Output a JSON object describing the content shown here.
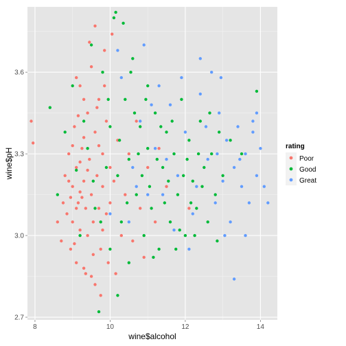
{
  "chart_data": {
    "type": "scatter",
    "title": "",
    "xlabel": "wine$alcohol",
    "ylabel": "wine$pH",
    "xlim": [
      7.8,
      14.45
    ],
    "ylim": [
      2.69,
      3.84
    ],
    "x_ticks": [
      8,
      10,
      12,
      14
    ],
    "y_ticks": [
      2.7,
      3.0,
      3.3,
      3.6
    ],
    "x_tick_labels": [
      "8",
      "10",
      "12",
      "14"
    ],
    "y_tick_labels": [
      "2.7",
      "3.0",
      "3.3",
      "3.6"
    ],
    "grid": true,
    "legend": {
      "title": "rating",
      "position": "right"
    },
    "series": [
      {
        "name": "Poor",
        "color": "#F8766D",
        "points": [
          [
            7.9,
            3.42
          ],
          [
            7.95,
            3.34
          ],
          [
            8.6,
            3.05
          ],
          [
            8.7,
            2.98
          ],
          [
            8.75,
            3.12
          ],
          [
            8.8,
            3.22
          ],
          [
            8.85,
            3.08
          ],
          [
            8.9,
            3.3
          ],
          [
            8.95,
            2.95
          ],
          [
            9.0,
            3.18
          ],
          [
            9.0,
            3.05
          ],
          [
            9.05,
            3.4
          ],
          [
            9.1,
            3.25
          ],
          [
            9.1,
            2.9
          ],
          [
            9.15,
            3.12
          ],
          [
            9.2,
            3.55
          ],
          [
            9.2,
            3.02
          ],
          [
            9.25,
            3.32
          ],
          [
            9.3,
            3.2
          ],
          [
            9.3,
            2.88
          ],
          [
            9.35,
            3.1
          ],
          [
            9.4,
            3.45
          ],
          [
            9.4,
            3.0
          ],
          [
            9.45,
            3.28
          ],
          [
            9.5,
            3.15
          ],
          [
            9.5,
            3.62
          ],
          [
            9.55,
            3.05
          ],
          [
            9.6,
            3.38
          ],
          [
            9.6,
            2.82
          ],
          [
            9.65,
            3.22
          ],
          [
            9.7,
            3.1
          ],
          [
            9.7,
            3.5
          ],
          [
            9.75,
            2.95
          ],
          [
            9.8,
            3.3
          ],
          [
            9.8,
            3.18
          ],
          [
            9.85,
            3.68
          ],
          [
            9.9,
            3.08
          ],
          [
            9.9,
            3.42
          ],
          [
            9.95,
            2.9
          ],
          [
            10.0,
            3.25
          ],
          [
            10.0,
            3.12
          ],
          [
            9.2,
            3.27
          ],
          [
            9.3,
            3.36
          ],
          [
            9.05,
            2.97
          ],
          [
            8.95,
            3.14
          ],
          [
            9.15,
            3.44
          ],
          [
            9.6,
            3.77
          ],
          [
            9.45,
            3.71
          ],
          [
            9.35,
            2.86
          ],
          [
            9.75,
            2.78
          ],
          [
            10.1,
            3.2
          ],
          [
            10.2,
            3.35
          ],
          [
            10.3,
            3.0
          ],
          [
            10.4,
            3.15
          ],
          [
            10.5,
            3.3
          ],
          [
            10.6,
            2.98
          ],
          [
            10.8,
            3.1
          ],
          [
            11.0,
            3.25
          ],
          [
            11.2,
            3.05
          ],
          [
            11.5,
            3.18
          ],
          [
            9.8,
            3.02
          ],
          [
            9.1,
            3.58
          ],
          [
            9.25,
            3.14
          ],
          [
            9.55,
            2.93
          ],
          [
            9.65,
            3.47
          ],
          [
            9.4,
            3.24
          ],
          [
            9.0,
            3.33
          ],
          [
            10.05,
            3.74
          ],
          [
            9.85,
            3.55
          ],
          [
            10.15,
            2.86
          ],
          [
            10.7,
            3.42
          ],
          [
            10.9,
            2.92
          ],
          [
            11.3,
            3.32
          ],
          [
            12.1,
            3.1
          ],
          [
            9.5,
            2.85
          ],
          [
            9.7,
            3.33
          ],
          [
            9.3,
            3.5
          ],
          [
            8.9,
            3.2
          ],
          [
            9.1,
            3.1
          ],
          [
            9.2,
            3.16
          ]
        ]
      },
      {
        "name": "Good",
        "color": "#00BA38",
        "points": [
          [
            8.4,
            3.47
          ],
          [
            8.6,
            3.15
          ],
          [
            8.8,
            3.38
          ],
          [
            9.0,
            3.55
          ],
          [
            9.2,
            3.0
          ],
          [
            9.4,
            3.32
          ],
          [
            9.6,
            3.1
          ],
          [
            9.8,
            3.6
          ],
          [
            10.0,
            2.95
          ],
          [
            10.0,
            3.4
          ],
          [
            10.1,
            3.8
          ],
          [
            10.15,
            3.82
          ],
          [
            10.2,
            3.22
          ],
          [
            10.3,
            3.05
          ],
          [
            10.4,
            3.5
          ],
          [
            10.5,
            3.28
          ],
          [
            10.5,
            2.9
          ],
          [
            10.6,
            3.65
          ],
          [
            10.7,
            3.15
          ],
          [
            10.8,
            3.4
          ],
          [
            10.9,
            3.0
          ],
          [
            11.0,
            3.32
          ],
          [
            11.0,
            3.55
          ],
          [
            11.1,
            3.1
          ],
          [
            11.2,
            3.45
          ],
          [
            11.3,
            2.95
          ],
          [
            11.4,
            3.25
          ],
          [
            11.5,
            3.38
          ],
          [
            11.6,
            3.05
          ],
          [
            11.7,
            3.3
          ],
          [
            11.8,
            3.15
          ],
          [
            11.9,
            3.5
          ],
          [
            12.0,
            3.0
          ],
          [
            12.1,
            3.35
          ],
          [
            12.2,
            3.2
          ],
          [
            12.3,
            3.1
          ],
          [
            12.4,
            3.42
          ],
          [
            12.5,
            3.25
          ],
          [
            12.6,
            3.05
          ],
          [
            12.7,
            3.3
          ],
          [
            12.8,
            3.15
          ],
          [
            12.9,
            3.38
          ],
          [
            13.0,
            3.22
          ],
          [
            13.2,
            3.35
          ],
          [
            13.5,
            3.3
          ],
          [
            13.9,
            3.53
          ],
          [
            9.7,
            2.72
          ],
          [
            10.2,
            2.78
          ],
          [
            9.5,
            3.7
          ],
          [
            10.35,
            3.78
          ],
          [
            9.9,
            3.25
          ],
          [
            10.25,
            3.35
          ],
          [
            10.45,
            3.12
          ],
          [
            10.65,
            3.45
          ],
          [
            10.85,
            3.22
          ],
          [
            11.05,
            3.18
          ],
          [
            11.25,
            3.28
          ],
          [
            11.45,
            3.12
          ],
          [
            11.65,
            3.42
          ],
          [
            11.85,
            3.02
          ],
          [
            12.05,
            3.28
          ],
          [
            12.25,
            3.0
          ],
          [
            12.45,
            3.18
          ],
          [
            12.65,
            3.45
          ],
          [
            12.85,
            2.98
          ],
          [
            9.1,
            3.24
          ],
          [
            9.3,
            3.42
          ],
          [
            9.55,
            3.2
          ],
          [
            9.75,
            3.05
          ],
          [
            9.95,
            3.5
          ],
          [
            10.55,
            3.6
          ],
          [
            10.75,
            3.3
          ],
          [
            10.95,
            3.5
          ],
          [
            11.15,
            2.92
          ],
          [
            11.35,
            3.4
          ],
          [
            11.55,
            3.2
          ],
          [
            11.75,
            2.95
          ],
          [
            11.95,
            3.22
          ],
          [
            12.15,
            3.12
          ],
          [
            12.35,
            3.3
          ]
        ]
      },
      {
        "name": "Great",
        "color": "#619CFF",
        "points": [
          [
            10.0,
            3.08
          ],
          [
            10.3,
            3.58
          ],
          [
            10.6,
            3.25
          ],
          [
            10.9,
            3.7
          ],
          [
            11.2,
            3.32
          ],
          [
            11.4,
            3.15
          ],
          [
            11.6,
            3.48
          ],
          [
            11.8,
            3.22
          ],
          [
            12.0,
            3.38
          ],
          [
            12.2,
            3.08
          ],
          [
            12.4,
            3.52
          ],
          [
            12.6,
            3.28
          ],
          [
            12.8,
            3.12
          ],
          [
            12.9,
            3.45
          ],
          [
            13.0,
            3.2
          ],
          [
            13.1,
            3.35
          ],
          [
            13.2,
            3.05
          ],
          [
            13.3,
            3.25
          ],
          [
            13.4,
            3.4
          ],
          [
            13.5,
            3.18
          ],
          [
            13.6,
            3.3
          ],
          [
            13.7,
            3.12
          ],
          [
            13.8,
            3.38
          ],
          [
            13.9,
            3.22
          ],
          [
            14.0,
            3.32
          ],
          [
            14.1,
            3.18
          ],
          [
            14.2,
            3.12
          ],
          [
            13.8,
            3.42
          ],
          [
            13.3,
            2.84
          ],
          [
            12.7,
            3.6
          ],
          [
            12.4,
            3.65
          ],
          [
            12.1,
            2.95
          ],
          [
            11.9,
            3.58
          ],
          [
            11.7,
            3.02
          ],
          [
            11.3,
            3.55
          ],
          [
            11.0,
            3.15
          ],
          [
            10.8,
            3.42
          ],
          [
            10.5,
            3.05
          ],
          [
            10.2,
            3.68
          ],
          [
            13.6,
            3.0
          ],
          [
            13.9,
            3.45
          ],
          [
            12.3,
            3.18
          ],
          [
            12.55,
            3.4
          ],
          [
            12.85,
            3.3
          ],
          [
            13.05,
            3.0
          ],
          [
            13.45,
            3.28
          ],
          [
            11.5,
            3.28
          ],
          [
            11.1,
            3.48
          ],
          [
            10.7,
            3.18
          ],
          [
            12.95,
            3.58
          ]
        ]
      }
    ]
  }
}
